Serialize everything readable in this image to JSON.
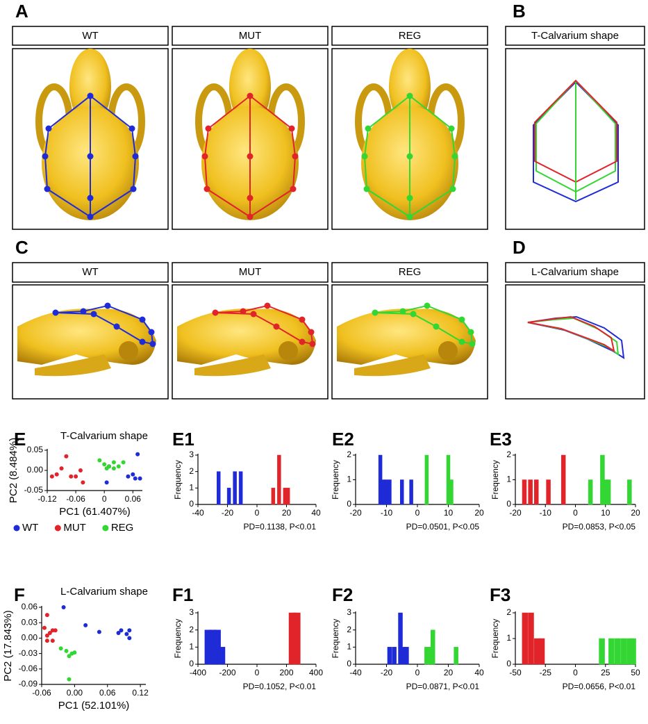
{
  "panels": {
    "A": {
      "label": "A",
      "headers": [
        "WT",
        "MUT",
        "REG"
      ]
    },
    "B": {
      "label": "B",
      "header": "T-Calvarium shape"
    },
    "C": {
      "label": "C",
      "headers": [
        "WT",
        "MUT",
        "REG"
      ]
    },
    "D": {
      "label": "D",
      "header": "L-Calvarium shape"
    }
  },
  "chart_data": [
    {
      "type": "scatter",
      "label": "E",
      "title": "T-Calvarium shape",
      "xlabel": "PC1 (61.407%)",
      "ylabel": "PC2 (8.484%)",
      "xlim": [
        -0.12,
        0.08
      ],
      "xticks": [
        -0.12,
        -0.06,
        0,
        0.06
      ],
      "ylim": [
        -0.05,
        0.05
      ],
      "yticks": [
        -0.05,
        {
          "value": 0,
          "label": "0.00"
        },
        0.05
      ],
      "series": [
        {
          "name": "WT",
          "color": "#1f2bd6",
          "x": [
            0.07,
            0.05,
            0.06,
            0.065,
            0.075,
            0.01,
            0.005
          ],
          "y": [
            0.04,
            -0.015,
            -0.01,
            -0.02,
            -0.02,
            0.01,
            -0.03
          ]
        },
        {
          "name": "MUT",
          "color": "#e0242a",
          "x": [
            -0.08,
            -0.09,
            -0.1,
            -0.11,
            -0.07,
            -0.05,
            -0.045,
            -0.06
          ],
          "y": [
            0.035,
            0.005,
            -0.01,
            -0.015,
            -0.015,
            0.0,
            -0.03,
            -0.015
          ]
        },
        {
          "name": "REG",
          "color": "#33d633",
          "x": [
            -0.01,
            0.0,
            0.01,
            0.02,
            0.03,
            0.04,
            0.02,
            0.005
          ],
          "y": [
            0.025,
            0.015,
            0.01,
            0.02,
            0.01,
            0.02,
            0.005,
            0.005
          ]
        }
      ]
    },
    {
      "type": "bar",
      "label": "E1",
      "ylabel": "Frequency",
      "annotation": "PD=0.1138, P<0.01",
      "xlim": [
        -40,
        40
      ],
      "xticks": [
        -40,
        -20,
        0,
        20,
        40
      ],
      "ylim": [
        0,
        3
      ],
      "yticks": [
        0,
        1,
        2,
        3
      ],
      "series": [
        {
          "color": "#1f2bd6",
          "x": [
            -26,
            -19,
            -15,
            -11
          ],
          "values": [
            2,
            1,
            2,
            2
          ]
        },
        {
          "color": "#e0242a",
          "x": [
            11,
            15,
            19,
            21
          ],
          "values": [
            1,
            3,
            1,
            1
          ]
        }
      ]
    },
    {
      "type": "bar",
      "label": "E2",
      "ylabel": "Frequency",
      "annotation": "PD=0.0501, P<0.05",
      "xlim": [
        -20,
        20
      ],
      "xticks": [
        -20,
        -10,
        0,
        10,
        20
      ],
      "ylim": [
        0,
        2
      ],
      "yticks": [
        0,
        1,
        2
      ],
      "series": [
        {
          "color": "#1f2bd6",
          "x": [
            -12,
            -11,
            -10,
            -9,
            -5,
            -2
          ],
          "values": [
            2,
            1,
            1,
            1,
            1,
            1
          ]
        },
        {
          "color": "#33d633",
          "x": [
            3,
            10,
            11
          ],
          "values": [
            2,
            2,
            1
          ]
        }
      ]
    },
    {
      "type": "bar",
      "label": "E3",
      "ylabel": "Frequency",
      "annotation": "PD=0.0853, P<0.05",
      "xlim": [
        -20,
        20
      ],
      "xticks": [
        -20,
        -10,
        0,
        10,
        20
      ],
      "ylim": [
        0,
        2
      ],
      "yticks": [
        0,
        1,
        2
      ],
      "series": [
        {
          "color": "#e0242a",
          "x": [
            -17,
            -15,
            -13,
            -9,
            -4
          ],
          "values": [
            1,
            1,
            1,
            1,
            2
          ]
        },
        {
          "color": "#33d633",
          "x": [
            5,
            9,
            10,
            11,
            18
          ],
          "values": [
            1,
            2,
            1,
            1,
            1
          ]
        }
      ]
    },
    {
      "type": "scatter",
      "label": "F",
      "title": "L-Calvarium shape",
      "xlabel": "PC1 (52.101%)",
      "ylabel": "PC2 (17.843%)",
      "xlim": [
        -0.06,
        0.13
      ],
      "xticks": [
        -0.06,
        {
          "value": 0,
          "label": "0.00"
        },
        0.06,
        0.12
      ],
      "ylim": [
        -0.09,
        0.06
      ],
      "yticks": [
        -0.09,
        -0.06,
        -0.03,
        {
          "value": 0,
          "label": "0.00"
        },
        0.03,
        0.06
      ],
      "series": [
        {
          "color": "#1f2bd6",
          "x": [
            -0.02,
            0.02,
            0.045,
            0.085,
            0.095,
            0.1,
            0.1,
            0.08
          ],
          "y": [
            0.06,
            0.025,
            0.012,
            0.015,
            0.008,
            0.015,
            0.0,
            0.01
          ]
        },
        {
          "color": "#e0242a",
          "x": [
            -0.05,
            -0.055,
            -0.05,
            -0.045,
            -0.04,
            -0.05,
            -0.035,
            -0.04
          ],
          "y": [
            0.045,
            0.02,
            0.005,
            0.01,
            0.015,
            -0.005,
            0.015,
            -0.005
          ]
        },
        {
          "color": "#33d633",
          "x": [
            -0.025,
            -0.015,
            -0.005,
            0.0,
            -0.01,
            -0.01
          ],
          "y": [
            -0.02,
            -0.025,
            -0.03,
            -0.028,
            -0.035,
            -0.08
          ]
        }
      ]
    },
    {
      "type": "bar",
      "label": "F1",
      "ylabel": "Frequency",
      "annotation": "PD=0.1052, P<0.01",
      "xlim": [
        -400,
        400
      ],
      "xticks": [
        -400,
        -200,
        0,
        200,
        400
      ],
      "ylim": [
        0,
        3
      ],
      "yticks": [
        0,
        1,
        2,
        3
      ],
      "series": [
        {
          "color": "#1f2bd6",
          "x": [
            -330,
            -300,
            -270,
            -240
          ],
          "values": [
            2,
            2,
            2,
            1
          ]
        },
        {
          "color": "#e0242a",
          "x": [
            240,
            270
          ],
          "values": [
            3,
            3
          ]
        }
      ]
    },
    {
      "type": "bar",
      "label": "F2",
      "ylabel": "Frequency",
      "annotation": "PD=0.0871, P<0.01",
      "xlim": [
        -40,
        40
      ],
      "xticks": [
        -40,
        -20,
        0,
        20,
        40
      ],
      "ylim": [
        0,
        3
      ],
      "yticks": [
        0,
        1,
        2,
        3
      ],
      "series": [
        {
          "color": "#1f2bd6",
          "x": [
            -18,
            -15,
            -11,
            -9,
            -7
          ],
          "values": [
            1,
            1,
            3,
            1,
            1
          ]
        },
        {
          "color": "#33d633",
          "x": [
            6,
            8,
            10,
            25
          ],
          "values": [
            1,
            1,
            2,
            1
          ]
        }
      ]
    },
    {
      "type": "bar",
      "label": "F3",
      "ylabel": "Frequency",
      "annotation": "PD=0.0656, P<0.01",
      "xlim": [
        -50,
        50
      ],
      "xticks": [
        -50,
        -25,
        0,
        25,
        50
      ],
      "ylim": [
        0,
        2
      ],
      "yticks": [
        0,
        1,
        2
      ],
      "series": [
        {
          "color": "#e0242a",
          "x": [
            -42,
            -37,
            -32,
            -28
          ],
          "values": [
            2,
            2,
            1,
            1
          ]
        },
        {
          "color": "#33d633",
          "x": [
            22,
            30,
            35,
            40,
            45,
            48
          ],
          "values": [
            1,
            1,
            1,
            1,
            1,
            1
          ]
        }
      ]
    }
  ]
}
